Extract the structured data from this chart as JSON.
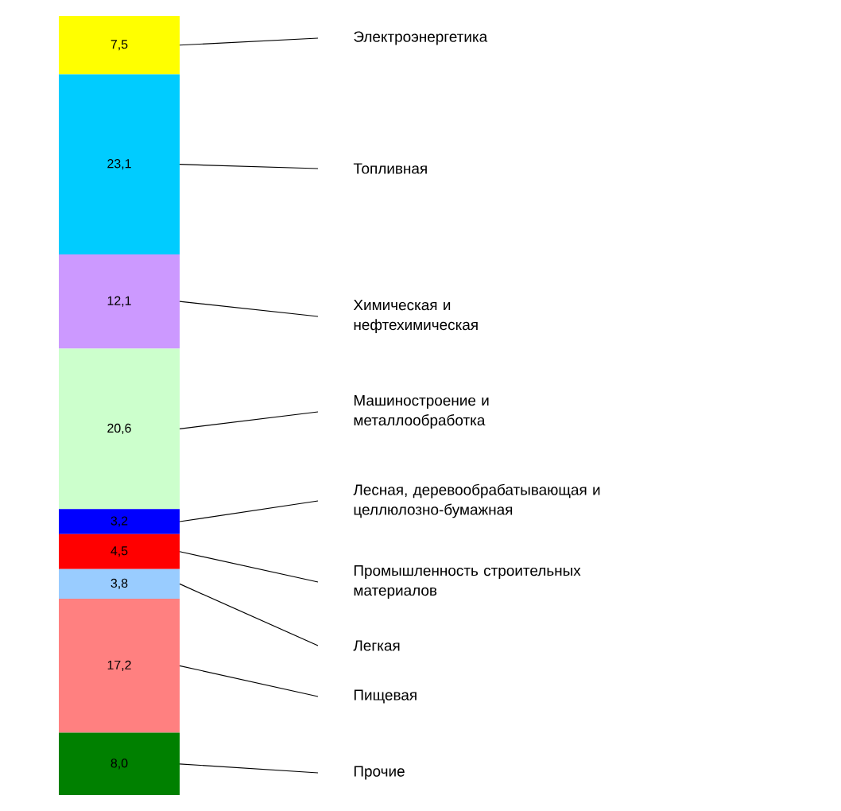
{
  "chart_data": {
    "type": "bar",
    "stacked": true,
    "categories": [
      null
    ],
    "series": [
      {
        "name": "Прочие",
        "color": "#008000",
        "values": [
          8.0
        ],
        "value_labels": [
          "8,0"
        ]
      },
      {
        "name": "Пищевая",
        "color": "#ff8080",
        "values": [
          17.2
        ],
        "value_labels": [
          "17,2"
        ]
      },
      {
        "name": "Легкая",
        "color": "#99ccff",
        "values": [
          3.8
        ],
        "value_labels": [
          "3,8"
        ]
      },
      {
        "name": "Промышленность строительных материалов",
        "color": "#ff0000",
        "values": [
          4.5
        ],
        "value_labels": [
          "4,5"
        ]
      },
      {
        "name": "Лесная, деревообрабатывающая и целлюлозно-бумажная",
        "color": "#0000ff",
        "values": [
          3.2
        ],
        "value_labels": [
          "3,2"
        ]
      },
      {
        "name": "Машиностроение и металлообработка",
        "color": "#ccffcc",
        "values": [
          20.6
        ],
        "value_labels": [
          "20,6"
        ]
      },
      {
        "name": "Химическая и нефтехимическая",
        "color": "#cc99ff",
        "values": [
          12.1
        ],
        "value_labels": [
          "12,1"
        ]
      },
      {
        "name": "Топливная",
        "color": "#00ccff",
        "values": [
          23.1
        ],
        "value_labels": [
          "23,1"
        ]
      },
      {
        "name": "Электроэнергетика",
        "color": "#ffff00",
        "values": [
          7.5
        ],
        "value_labels": [
          "7,5"
        ]
      }
    ]
  }
}
